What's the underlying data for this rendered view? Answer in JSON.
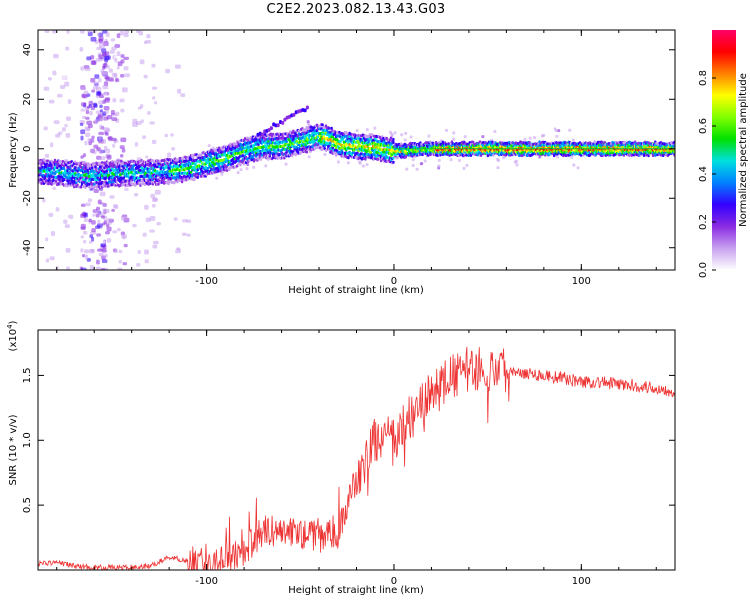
{
  "title": "C2E2.2023.082.13.43.G03",
  "colors": {
    "snr_line": "#ee3333",
    "colorscale": [
      "#ffffff",
      "#c8a0f0",
      "#8a2be2",
      "#3300ff",
      "#0080ff",
      "#00e0e0",
      "#00e000",
      "#80ff00",
      "#ffff00",
      "#ff8000",
      "#ff0000",
      "#ff0066"
    ]
  },
  "chart_data": [
    {
      "type": "heatmap",
      "title": "",
      "xlabel": "Height of straight line (km)",
      "ylabel": "Frequency (Hz)",
      "xlim": [
        -190,
        150
      ],
      "ylim": [
        -49,
        48
      ],
      "xticks": [
        -100,
        0,
        100
      ],
      "yticks": [
        -40,
        -20,
        0,
        20,
        40
      ],
      "xtick_labels": [
        "-100",
        "0",
        "100"
      ],
      "ytick_labels": [
        "-40",
        "-20",
        "0",
        "20",
        "40"
      ],
      "colorbar": {
        "label": "Normalized spectral amplitude",
        "range": [
          0.0,
          1.0
        ],
        "ticks": [
          0.0,
          0.2,
          0.4,
          0.6,
          0.8
        ],
        "tick_labels": [
          "0.0",
          "0.2",
          "0.4",
          "0.6",
          "0.8"
        ]
      },
      "ridge": {
        "x": [
          -190,
          -175,
          -160,
          -150,
          -140,
          -130,
          -120,
          -110,
          -100,
          -90,
          -80,
          -70,
          -60,
          -50,
          -45,
          -40,
          -35,
          -30,
          -20,
          -10,
          0,
          20,
          50,
          100,
          150
        ],
        "frequency": [
          -9,
          -10,
          -11,
          -10,
          -10,
          -9.5,
          -9,
          -8,
          -6,
          -4,
          -1,
          1,
          1,
          3,
          4,
          5,
          4,
          2,
          1,
          0.5,
          -1,
          0,
          0,
          0,
          0
        ]
      }
    },
    {
      "type": "line",
      "title": "",
      "xlabel": "Height of straight line (km)",
      "ylabel": "SNR (10 * v/v)",
      "y_multiplier": "(x10",
      "y_multiplier_exp": "4",
      "y_multiplier_close": ")",
      "xlim": [
        -190,
        150
      ],
      "ylim": [
        0,
        1.85
      ],
      "xticks": [
        -100,
        0,
        100
      ],
      "yticks": [
        0.5,
        1.0,
        1.5
      ],
      "xtick_labels": [
        "-100",
        "0",
        "100"
      ],
      "ytick_labels": [
        "0.5",
        "1.0",
        "1.5"
      ],
      "series": [
        {
          "x": [
            -190,
            -180,
            -170,
            -160,
            -150,
            -140,
            -130,
            -120,
            -110,
            -100,
            -90,
            -80,
            -70,
            -60,
            -50,
            -40,
            -30,
            -25,
            -20,
            -15,
            -10,
            -5,
            0,
            5,
            10,
            20,
            30,
            40,
            50,
            60,
            70,
            80,
            90,
            100,
            110,
            120,
            130,
            140,
            150
          ],
          "values": [
            0.05,
            0.06,
            0.03,
            0.02,
            0.02,
            0.02,
            0.03,
            0.1,
            0.07,
            0.05,
            0.1,
            0.15,
            0.3,
            0.3,
            0.28,
            0.25,
            0.28,
            0.5,
            0.7,
            0.85,
            1.0,
            1.05,
            0.98,
            1.1,
            1.2,
            1.35,
            1.48,
            1.55,
            1.55,
            1.55,
            1.52,
            1.5,
            1.48,
            1.45,
            1.45,
            1.43,
            1.42,
            1.4,
            1.38
          ]
        }
      ]
    }
  ]
}
